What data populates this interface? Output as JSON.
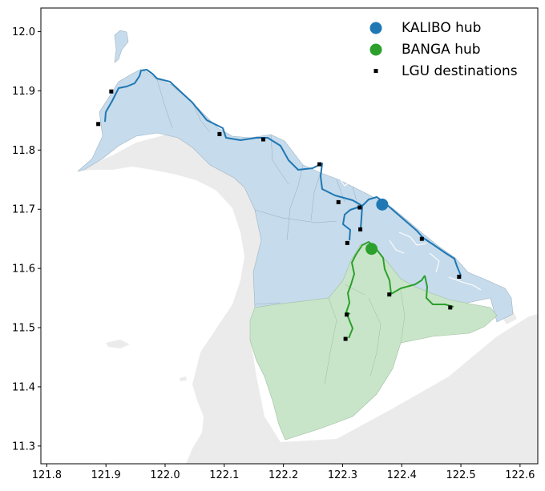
{
  "map": {
    "axes": {
      "x_ticks": [
        "121.8",
        "121.9",
        "122.0",
        "122.1",
        "122.2",
        "122.3",
        "122.4",
        "122.5",
        "122.6"
      ],
      "y_ticks": [
        "12.0",
        "11.9",
        "11.8",
        "11.7",
        "11.6",
        "11.5",
        "11.4",
        "11.3"
      ],
      "xlim": [
        121.79,
        122.63
      ],
      "ylim": [
        11.27,
        12.04
      ]
    },
    "legend": {
      "placement": "top-right",
      "items": [
        {
          "label": "KALIBO hub",
          "color": "#1f77b4",
          "marker": "circle"
        },
        {
          "label": "BANGA hub",
          "color": "#2ca02c",
          "marker": "circle"
        },
        {
          "label": "LGU destinations",
          "color": "#000000",
          "marker": "square"
        }
      ]
    },
    "hubs": [
      {
        "name": "KALIBO",
        "lon": 122.367,
        "lat": 11.708,
        "color": "#1f77b4"
      },
      {
        "name": "BANGA",
        "lon": 122.349,
        "lat": 11.633,
        "color": "#2ca02c"
      }
    ],
    "destinations": [
      {
        "lon": 121.909,
        "lat": 11.899
      },
      {
        "lon": 121.887,
        "lat": 11.844
      },
      {
        "lon": 122.092,
        "lat": 11.827
      },
      {
        "lon": 122.166,
        "lat": 11.818
      },
      {
        "lon": 122.261,
        "lat": 11.776
      },
      {
        "lon": 122.293,
        "lat": 11.712
      },
      {
        "lon": 122.329,
        "lat": 11.703
      },
      {
        "lon": 122.33,
        "lat": 11.666
      },
      {
        "lon": 122.308,
        "lat": 11.643
      },
      {
        "lon": 122.434,
        "lat": 11.65
      },
      {
        "lon": 122.497,
        "lat": 11.586
      },
      {
        "lon": 122.379,
        "lat": 11.556
      },
      {
        "lon": 122.482,
        "lat": 11.534
      },
      {
        "lon": 122.307,
        "lat": 11.522
      },
      {
        "lon": 122.305,
        "lat": 11.481
      }
    ],
    "colors": {
      "kalibo_area": "#c6dbeb",
      "banga_area": "#c9e5c9",
      "other_land": "#ebebeb",
      "kalibo_route": "#1f77b4",
      "banga_route": "#2ca02c"
    }
  }
}
